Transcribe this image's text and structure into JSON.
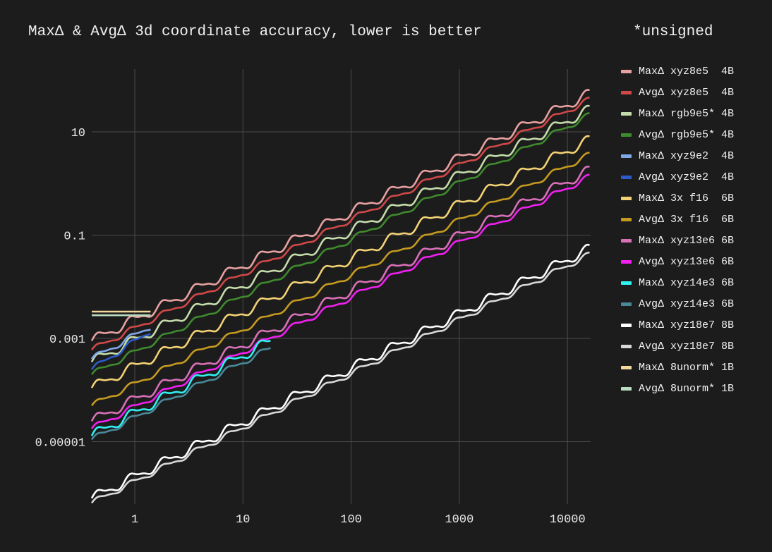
{
  "chart_data": {
    "type": "line",
    "title": "MaxΔ & AvgΔ 3d coordinate accuracy, lower is better",
    "note": "*unsigned",
    "x_scale": "log",
    "y_scale": "log",
    "xlim": [
      0.4,
      16000
    ],
    "ylim": [
      7e-07,
      0.12
    ],
    "x_ticks": [
      {
        "value": 1,
        "label": "1"
      },
      {
        "value": 10,
        "label": "10"
      },
      {
        "value": 100,
        "label": "100"
      },
      {
        "value": 1000,
        "label": "1000"
      },
      {
        "value": 10000,
        "label": "10000"
      }
    ],
    "y_ticks": [
      {
        "value": 1e-05,
        "label": "0.00001"
      },
      {
        "value": 0.001,
        "label": "0.001"
      },
      {
        "value": 0.1,
        "label": "0.1"
      },
      {
        "value": 10,
        "label": "10"
      }
    ],
    "grid": true,
    "legend_position": "right",
    "series": [
      {
        "name": "MaxΔ xyz8e5  4B",
        "color": "#e8a0a0",
        "x_start": 0.4,
        "x_end": 16000,
        "y_start": 0.0009,
        "y_end": 55,
        "waves": "big"
      },
      {
        "name": "AvgΔ xyz8e5  4B",
        "color": "#d04848",
        "x_start": 0.4,
        "x_end": 16000,
        "y_start": 0.0006,
        "y_end": 42,
        "waves": "small"
      },
      {
        "name": "MaxΔ rgb9e5* 4B",
        "color": "#c4dcaa",
        "x_start": 0.4,
        "x_end": 16000,
        "y_start": 0.00035,
        "y_end": 27,
        "waves": "big"
      },
      {
        "name": "AvgΔ rgb9e5* 4B",
        "color": "#3f8a2e",
        "x_start": 0.4,
        "x_end": 16000,
        "y_start": 0.0002,
        "y_end": 21,
        "waves": "small"
      },
      {
        "name": "MaxΔ xyz9e2  4B",
        "color": "#7ea8e8",
        "x_start": 0.4,
        "x_end": 1.4,
        "y_start": 0.0004,
        "y_end": 0.0017,
        "waves": "small"
      },
      {
        "name": "AvgΔ xyz9e2  4B",
        "color": "#2d5cc8",
        "x_start": 0.4,
        "x_end": 1.4,
        "y_start": 0.00025,
        "y_end": 0.0014,
        "waves": "small"
      },
      {
        "name": "MaxΔ 3x f16  6B",
        "color": "#f3d275",
        "x_start": 0.4,
        "x_end": 16000,
        "y_start": 0.00011,
        "y_end": 7,
        "waves": "big"
      },
      {
        "name": "AvgΔ 3x f16  6B",
        "color": "#c49a20",
        "x_start": 0.4,
        "x_end": 16000,
        "y_start": 5e-05,
        "y_end": 3.6,
        "waves": "small"
      },
      {
        "name": "MaxΔ xyz13e6 6B",
        "color": "#d870b8",
        "x_start": 0.4,
        "x_end": 16000,
        "y_start": 2.5e-05,
        "y_end": 1.8,
        "waves": "big"
      },
      {
        "name": "AvgΔ xyz13e6 6B",
        "color": "#f020f0",
        "x_start": 0.4,
        "x_end": 16000,
        "y_start": 1.8e-05,
        "y_end": 1.35,
        "waves": "small"
      },
      {
        "name": "MaxΔ xyz14e3 6B",
        "color": "#30f0f0",
        "x_start": 0.4,
        "x_end": 18,
        "y_start": 1.3e-05,
        "y_end": 0.0009,
        "waves": "big"
      },
      {
        "name": "AvgΔ xyz14e3 6B",
        "color": "#4a8898",
        "x_start": 0.4,
        "x_end": 18,
        "y_start": 1.1e-05,
        "y_end": 0.00065,
        "waves": "small"
      },
      {
        "name": "MaxΔ xyz18e7 8B",
        "color": "#ffffff",
        "x_start": 0.4,
        "x_end": 16000,
        "y_start": 8e-07,
        "y_end": 0.055,
        "waves": "big"
      },
      {
        "name": "AvgΔ xyz18e7 8B",
        "color": "#d8d8d8",
        "x_start": 0.4,
        "x_end": 16000,
        "y_start": 6.5e-07,
        "y_end": 0.042,
        "waves": "small"
      },
      {
        "name": "MaxΔ 8unorm* 1B",
        "color": "#f5d99c",
        "x_start": 0.4,
        "x_end": 1.4,
        "y_start": 0.0033,
        "y_end": 0.0033,
        "waves": "none"
      },
      {
        "name": "AvgΔ 8unorm* 1B",
        "color": "#b8dcc0",
        "x_start": 0.4,
        "x_end": 1.4,
        "y_start": 0.0028,
        "y_end": 0.0028,
        "waves": "none"
      }
    ]
  }
}
